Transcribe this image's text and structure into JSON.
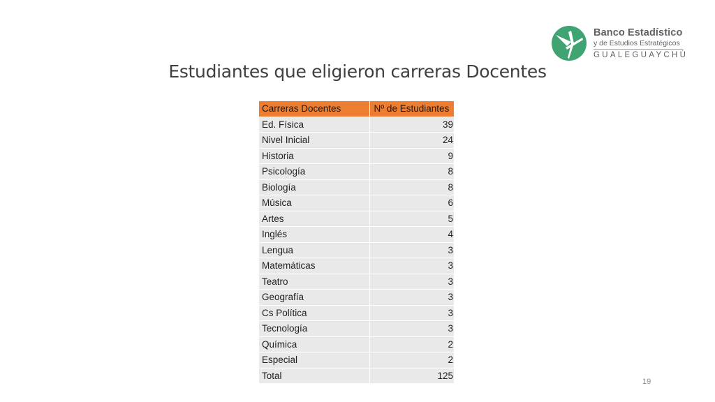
{
  "logo": {
    "line1": "Banco Estadístico",
    "line2": "y de Estudios Estratégicos",
    "line3": "GUALEGUAYCHÚ",
    "colors": {
      "mark": "#3fa372",
      "text": "#5f6166"
    }
  },
  "title": "Estudiantes que eligieron carreras Docentes",
  "table": {
    "headers": [
      "Carreras Docentes",
      "Nº de Estudiantes"
    ],
    "rows": [
      {
        "career": "Ed. Física",
        "count": "39"
      },
      {
        "career": "Nivel Inicial",
        "count": "24"
      },
      {
        "career": "Historia",
        "count": "9"
      },
      {
        "career": "Psicología",
        "count": "8"
      },
      {
        "career": "Biología",
        "count": "8"
      },
      {
        "career": "Música",
        "count": "6"
      },
      {
        "career": "Artes",
        "count": "5"
      },
      {
        "career": "Inglés",
        "count": "4"
      },
      {
        "career": "Lengua",
        "count": "3"
      },
      {
        "career": "Matemáticas",
        "count": "3"
      },
      {
        "career": "Teatro",
        "count": "3"
      },
      {
        "career": "Geografía",
        "count": "3"
      },
      {
        "career": "Cs Política",
        "count": "3"
      },
      {
        "career": "Tecnología",
        "count": "3"
      },
      {
        "career": "Química",
        "count": "2"
      },
      {
        "career": "Especial",
        "count": "2"
      },
      {
        "career": "Total",
        "count": "125"
      }
    ],
    "header_color": "#ed7d31",
    "stripe_color": "#e9e9e9"
  },
  "page_number": "19"
}
